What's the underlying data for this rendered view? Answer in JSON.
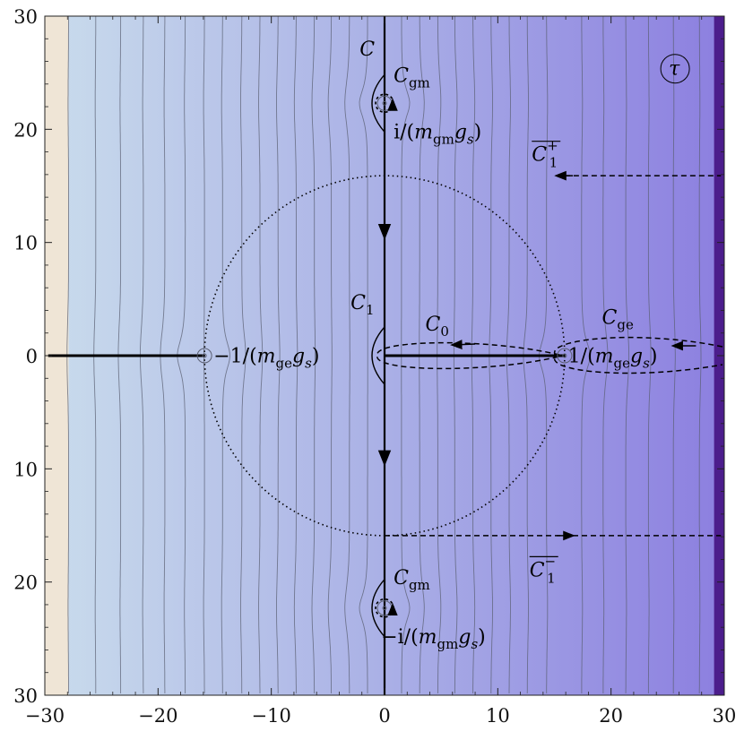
{
  "chart_data": {
    "type": "contour",
    "title": "",
    "xlabel": "",
    "ylabel": "",
    "xlim": [
      -30,
      30
    ],
    "ylim": [
      -30,
      30
    ],
    "x_ticks": [
      -30,
      -20,
      -10,
      0,
      10,
      20,
      30
    ],
    "y_ticks": [
      -30,
      -20,
      -10,
      0,
      10,
      20,
      30
    ],
    "x_tick_labels": [
      "−30",
      "−20",
      "−10",
      "0",
      "10",
      "20",
      "30"
    ],
    "y_tick_labels": [
      "30",
      "20",
      "10",
      "0",
      "10",
      "20",
      "30"
    ],
    "grid": false,
    "colors": {
      "background_left": "#c9dcec",
      "background_mid": "#aab0e6",
      "background_right": "#8c7fe0",
      "left_band": "#efe5d6",
      "right_band": "#4c1d8c",
      "contour_line": "#5a5f72",
      "curve": "#000000"
    },
    "contour_levels_x": [
      -27.9,
      -25.5,
      -23.3,
      -21.3,
      -19.4,
      -17.6,
      -15.9,
      -14.3,
      -12.6,
      -11.0,
      -9.4,
      -7.8,
      -6.2,
      -4.7,
      -3.1,
      -1.5,
      1.5,
      3.1,
      4.7,
      6.2,
      7.8,
      9.4,
      11.0,
      12.6,
      14.3,
      17.4,
      19.3,
      21.3,
      23.3,
      25.5,
      27.8
    ],
    "branch_cuts": [
      {
        "from": [
          -29.7,
          0
        ],
        "to": [
          -15.9,
          0
        ]
      },
      {
        "from": [
          0,
          0
        ],
        "to": [
          15.9,
          0
        ]
      }
    ],
    "circle": {
      "center": [
        0,
        0
      ],
      "radius": 15.9,
      "style": "dotted"
    },
    "vertical_contour_C": {
      "x": 0,
      "y_from": 30,
      "y_to": -30,
      "detours_at_y": [
        22.3,
        0,
        -22.3
      ]
    },
    "rays": [
      {
        "name": "C1+ ray",
        "y": 15.9,
        "x_from": 15.9,
        "x_to": 29.7,
        "direction": "left",
        "style": "dashed"
      },
      {
        "name": "C1- ray",
        "y": -15.9,
        "x_from": 0,
        "x_to": 29.7,
        "direction": "right",
        "style": "dashed"
      }
    ],
    "singular_points": [
      {
        "x": -15.9,
        "y": 0
      },
      {
        "x": 15.9,
        "y": 0
      },
      {
        "x": 0,
        "y": 22.3
      },
      {
        "x": 0,
        "y": -22.3
      }
    ],
    "annotations": [
      {
        "id": "tau",
        "text": "τ"
      },
      {
        "id": "C",
        "text": "C"
      },
      {
        "id": "Cgm_top",
        "main": "C",
        "sub": "gm"
      },
      {
        "id": "Cgm_bottom",
        "main": "C",
        "sub": "gm"
      },
      {
        "id": "C1",
        "main": "C",
        "sub": "1"
      },
      {
        "id": "C0",
        "main": "C",
        "sub": "0"
      },
      {
        "id": "Cge",
        "main": "C",
        "sub": "ge"
      },
      {
        "id": "C1bar_plus",
        "main": "C",
        "sub": "1",
        "sup": "+"
      },
      {
        "id": "C1bar_minus",
        "main": "C",
        "sub": "1",
        "sup": "−"
      },
      {
        "id": "label_top",
        "prefix": "i/(",
        "m": "m",
        "msub": "gm",
        "g": "g",
        "gsub": "s",
        "suffix": ")"
      },
      {
        "id": "label_bottom",
        "prefix": "−i/(",
        "m": "m",
        "msub": "gm",
        "g": "g",
        "gsub": "s",
        "suffix": ")"
      },
      {
        "id": "label_left",
        "prefix": "−1/(",
        "m": "m",
        "msub": "ge",
        "g": "g",
        "gsub": "s",
        "suffix": ")"
      },
      {
        "id": "label_right",
        "prefix": "1/(",
        "m": "m",
        "msub": "ge",
        "g": "g",
        "gsub": "s",
        "suffix": ")"
      }
    ]
  }
}
